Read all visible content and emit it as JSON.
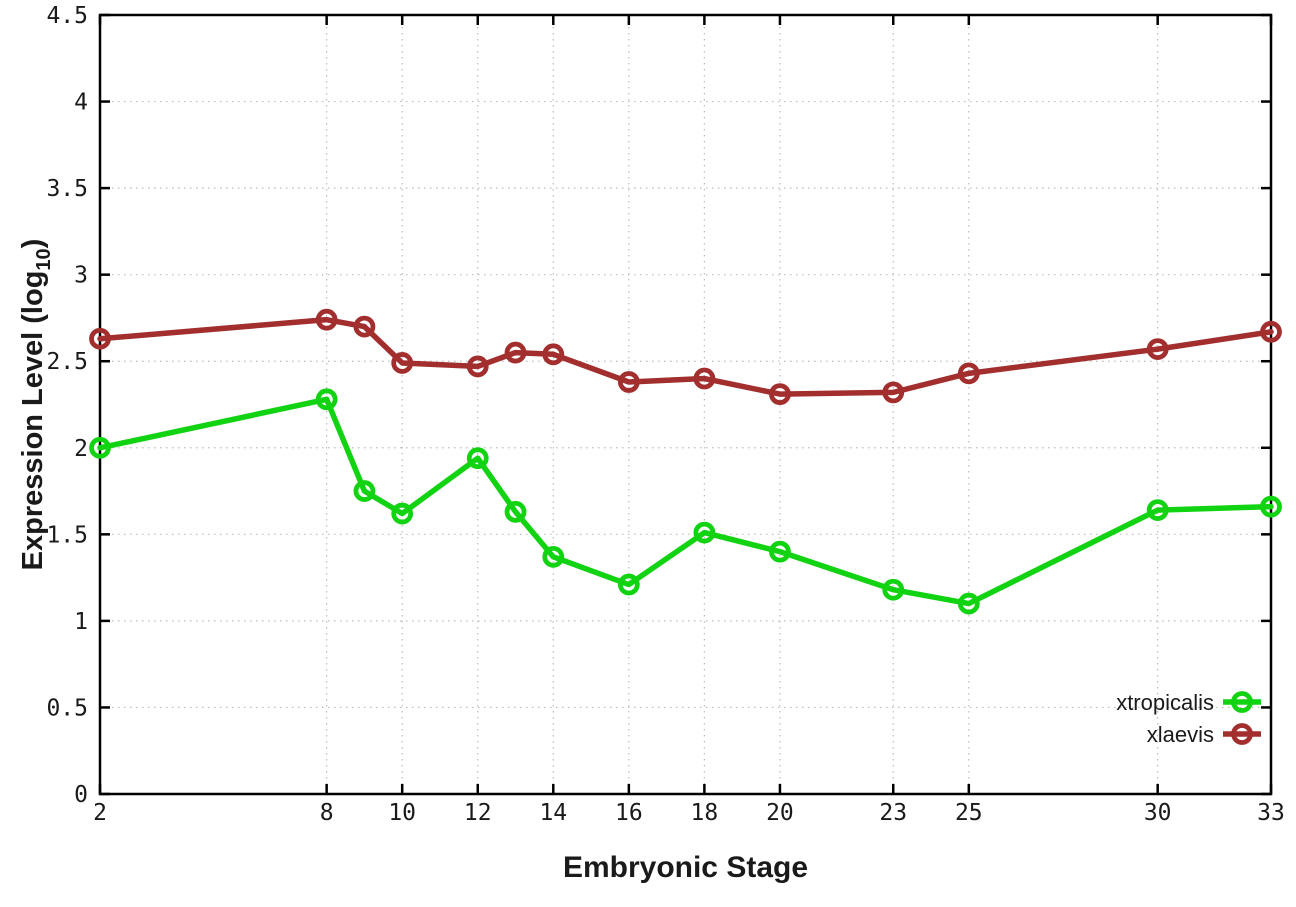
{
  "chart_data": {
    "type": "line",
    "x": [
      2,
      8,
      9,
      10,
      12,
      13,
      14,
      16,
      18,
      20,
      23,
      25,
      30,
      33
    ],
    "series": [
      {
        "name": "xtropicalis",
        "color": "#12d312",
        "values": [
          2.0,
          2.28,
          1.75,
          1.62,
          1.94,
          1.63,
          1.37,
          1.21,
          1.51,
          1.4,
          1.18,
          1.1,
          1.64,
          1.66
        ]
      },
      {
        "name": "xlaevis",
        "color": "#a22e2e",
        "values": [
          2.63,
          2.74,
          2.7,
          2.49,
          2.47,
          2.55,
          2.54,
          2.38,
          2.4,
          2.31,
          2.32,
          2.43,
          2.57,
          2.67
        ]
      }
    ],
    "title": "",
    "xlabel": "Embryonic Stage",
    "ylabel_pre": "Expression Level (log",
    "ylabel_sub": "10",
    "ylabel_post": ")",
    "xticks": [
      2,
      8,
      10,
      12,
      14,
      16,
      18,
      20,
      23,
      25,
      30,
      33
    ],
    "yticks": [
      0,
      0.5,
      1,
      1.5,
      2,
      2.5,
      3,
      3.5,
      4,
      4.5
    ],
    "xlim": [
      2,
      33
    ],
    "ylim": [
      0,
      4.5
    ],
    "grid": true,
    "marker": "open-circle",
    "legend_position": "inside-right",
    "legend": [
      "xtropicalis",
      "xlaevis"
    ],
    "grid_color": "#bcbcbc",
    "axis_color": "#000000",
    "text_color": "#1a1a1a",
    "background_color": "#ffffff"
  }
}
